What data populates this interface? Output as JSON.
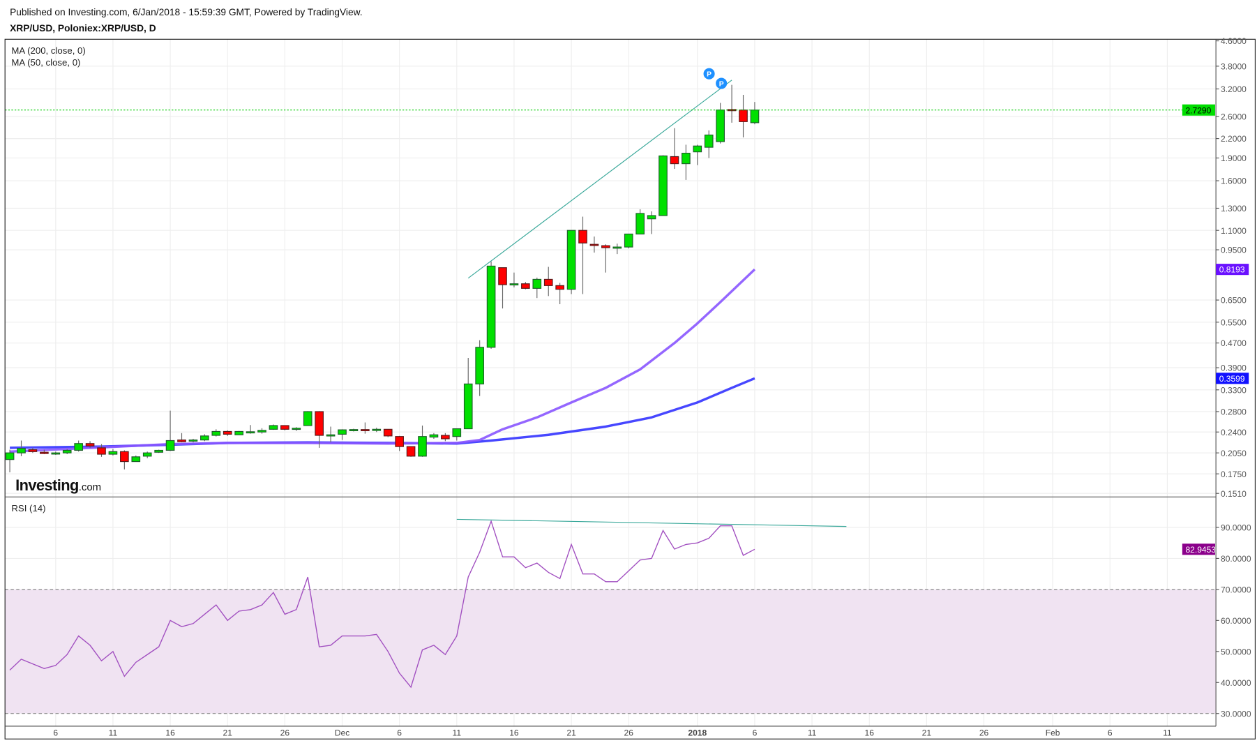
{
  "header": {
    "published": "Published on Investing.com, 6/Jan/2018 - 15:59:39 GMT, Powered by TradingView.",
    "symbol_title": "XRP/USD, Poloniex:XRP/USD, D"
  },
  "logo": {
    "text": "Investing",
    "suffix": ".com"
  },
  "chart_data": [
    {
      "type": "candlestick",
      "pane": "price",
      "scale": "log",
      "legend": [
        "MA (200, close, 0)",
        "MA (50, close, 0)"
      ],
      "yticks": [
        "4.6000",
        "3.8000",
        "3.2000",
        "2.6000",
        "2.2000",
        "1.9000",
        "1.6000",
        "1.3000",
        "1.1000",
        "0.9500",
        "0.6500",
        "0.5500",
        "0.4700",
        "0.3900",
        "0.3300",
        "0.2800",
        "0.2400",
        "0.2050",
        "0.1750",
        "0.1510"
      ],
      "ylim": [
        0.151,
        4.6
      ],
      "grid": true,
      "colors": {
        "up": "#00e000",
        "down": "#ff0000",
        "ma50": "#8855ff",
        "ma200": "#3333ff",
        "trendline": "#3aa89a",
        "last_price_line": "#00cc00"
      },
      "candles": [
        [
          "2017-11-02",
          0.195,
          0.21,
          0.177,
          0.205
        ],
        [
          "2017-11-03",
          0.205,
          0.225,
          0.2,
          0.212
        ],
        [
          "2017-11-04",
          0.21,
          0.213,
          0.205,
          0.207
        ],
        [
          "2017-11-05",
          0.206,
          0.21,
          0.203,
          0.204
        ],
        [
          "2017-11-06",
          0.204,
          0.207,
          0.202,
          0.205
        ],
        [
          "2017-11-07",
          0.205,
          0.211,
          0.203,
          0.209
        ],
        [
          "2017-11-08",
          0.209,
          0.225,
          0.207,
          0.22
        ],
        [
          "2017-11-09",
          0.22,
          0.224,
          0.213,
          0.216
        ],
        [
          "2017-11-10",
          0.213,
          0.219,
          0.199,
          0.203
        ],
        [
          "2017-11-11",
          0.203,
          0.211,
          0.201,
          0.207
        ],
        [
          "2017-11-12",
          0.207,
          0.209,
          0.181,
          0.192
        ],
        [
          "2017-11-13",
          0.192,
          0.201,
          0.192,
          0.199
        ],
        [
          "2017-11-14",
          0.2,
          0.207,
          0.197,
          0.205
        ],
        [
          "2017-11-15",
          0.206,
          0.21,
          0.205,
          0.209
        ],
        [
          "2017-11-16",
          0.209,
          0.282,
          0.208,
          0.225
        ],
        [
          "2017-11-17",
          0.226,
          0.238,
          0.222,
          0.223
        ],
        [
          "2017-11-18",
          0.224,
          0.228,
          0.222,
          0.226
        ],
        [
          "2017-11-19",
          0.226,
          0.236,
          0.224,
          0.233
        ],
        [
          "2017-11-20",
          0.234,
          0.245,
          0.232,
          0.241
        ],
        [
          "2017-11-21",
          0.241,
          0.243,
          0.233,
          0.236
        ],
        [
          "2017-11-22",
          0.235,
          0.242,
          0.235,
          0.241
        ],
        [
          "2017-11-23",
          0.24,
          0.253,
          0.237,
          0.2405
        ],
        [
          "2017-11-24",
          0.24,
          0.247,
          0.237,
          0.243
        ],
        [
          "2017-11-25",
          0.245,
          0.254,
          0.244,
          0.252
        ],
        [
          "2017-11-26",
          0.252,
          0.252,
          0.243,
          0.245
        ],
        [
          "2017-11-27",
          0.245,
          0.249,
          0.242,
          0.247
        ],
        [
          "2017-11-28",
          0.252,
          0.281,
          0.252,
          0.28
        ],
        [
          "2017-11-29",
          0.28,
          0.281,
          0.213,
          0.234
        ],
        [
          "2017-11-30",
          0.234,
          0.25,
          0.222,
          0.235
        ],
        [
          "2017-12-01",
          0.236,
          0.245,
          0.226,
          0.244
        ],
        [
          "2017-12-02",
          0.244,
          0.246,
          0.241,
          0.2445
        ],
        [
          "2017-12-03",
          0.2445,
          0.258,
          0.237,
          0.244
        ],
        [
          "2017-12-04",
          0.244,
          0.248,
          0.24,
          0.245
        ],
        [
          "2017-12-05",
          0.245,
          0.245,
          0.231,
          0.233
        ],
        [
          "2017-12-06",
          0.232,
          0.233,
          0.208,
          0.215
        ],
        [
          "2017-12-07",
          0.215,
          0.215,
          0.199,
          0.2
        ],
        [
          "2017-12-08",
          0.2,
          0.252,
          0.199,
          0.232
        ],
        [
          "2017-12-09",
          0.231,
          0.238,
          0.228,
          0.235
        ],
        [
          "2017-12-10",
          0.234,
          0.238,
          0.224,
          0.228
        ],
        [
          "2017-12-11",
          0.232,
          0.245,
          0.225,
          0.246
        ],
        [
          "2017-12-12",
          0.246,
          0.42,
          0.246,
          0.345
        ],
        [
          "2017-12-13",
          0.345,
          0.48,
          0.315,
          0.455
        ],
        [
          "2017-12-14",
          0.455,
          0.87,
          0.45,
          0.84
        ],
        [
          "2017-12-15",
          0.83,
          0.83,
          0.61,
          0.73
        ],
        [
          "2017-12-16",
          0.73,
          0.8,
          0.715,
          0.735
        ],
        [
          "2017-12-17",
          0.735,
          0.745,
          0.705,
          0.71
        ],
        [
          "2017-12-18",
          0.71,
          0.77,
          0.66,
          0.76
        ],
        [
          "2017-12-19",
          0.76,
          0.835,
          0.67,
          0.725
        ],
        [
          "2017-12-20",
          0.725,
          0.74,
          0.63,
          0.705
        ],
        [
          "2017-12-21",
          0.705,
          1.1,
          0.68,
          1.1
        ],
        [
          "2017-12-22",
          1.1,
          1.22,
          0.68,
          1.0
        ],
        [
          "2017-12-23",
          0.99,
          1.05,
          0.93,
          0.985
        ],
        [
          "2017-12-24",
          0.98,
          0.99,
          0.8,
          0.965
        ],
        [
          "2017-12-25",
          0.965,
          0.995,
          0.92,
          0.97
        ],
        [
          "2017-12-26",
          0.97,
          1.06,
          0.96,
          1.07
        ],
        [
          "2017-12-27",
          1.07,
          1.29,
          1.07,
          1.25
        ],
        [
          "2017-12-28",
          1.2,
          1.27,
          1.07,
          1.23
        ],
        [
          "2017-12-29",
          1.23,
          1.94,
          1.23,
          1.93
        ],
        [
          "2017-12-30",
          1.92,
          2.38,
          1.75,
          1.82
        ],
        [
          "2017-12-31",
          1.82,
          2.1,
          1.61,
          1.97
        ],
        [
          "2018-01-01",
          1.99,
          2.1,
          1.8,
          2.08
        ],
        [
          "2018-01-02",
          2.06,
          2.34,
          1.9,
          2.26
        ],
        [
          "2018-01-03",
          2.15,
          2.88,
          2.12,
          2.73
        ],
        [
          "2018-01-04",
          2.74,
          3.3,
          2.48,
          2.73
        ],
        [
          "2018-01-05",
          2.73,
          3.06,
          2.22,
          2.5
        ],
        [
          "2018-01-06",
          2.48,
          2.9,
          2.45,
          2.729
        ]
      ],
      "ma200": [
        [
          "2017-11-02",
          0.213
        ],
        [
          "2017-11-10",
          0.215
        ],
        [
          "2017-11-16",
          0.218
        ],
        [
          "2017-11-21",
          0.221
        ],
        [
          "2017-11-28",
          0.222
        ],
        [
          "2017-12-05",
          0.221
        ],
        [
          "2017-12-11",
          0.22
        ],
        [
          "2017-12-14",
          0.225
        ],
        [
          "2017-12-19",
          0.235
        ],
        [
          "2017-12-24",
          0.25
        ],
        [
          "2017-12-28",
          0.268
        ],
        [
          "2018-01-01",
          0.3
        ],
        [
          "2018-01-04",
          0.335
        ],
        [
          "2018-01-06",
          0.3599
        ]
      ],
      "ma50": [
        [
          "2017-11-02",
          0.207
        ],
        [
          "2017-11-08",
          0.212
        ],
        [
          "2017-11-16",
          0.219
        ],
        [
          "2017-11-21",
          0.221
        ],
        [
          "2017-11-28",
          0.221
        ],
        [
          "2017-12-05",
          0.22
        ],
        [
          "2017-12-11",
          0.221
        ],
        [
          "2017-12-13",
          0.226
        ],
        [
          "2017-12-15",
          0.245
        ],
        [
          "2017-12-18",
          0.268
        ],
        [
          "2017-12-21",
          0.3
        ],
        [
          "2017-12-24",
          0.335
        ],
        [
          "2017-12-27",
          0.385
        ],
        [
          "2017-12-30",
          0.47
        ],
        [
          "2018-01-01",
          0.545
        ],
        [
          "2018-01-03",
          0.64
        ],
        [
          "2018-01-06",
          0.8193
        ]
      ],
      "trendline": [
        [
          "2017-12-12",
          0.767
        ],
        [
          "2018-01-04",
          3.42
        ]
      ],
      "markers": [
        {
          "date": "2018-01-03",
          "label": "P"
        },
        {
          "date": "2018-01-04",
          "label": "P"
        }
      ],
      "badges": [
        {
          "value": "2.7290",
          "price": 2.729,
          "bg": "#00dd00",
          "fg": "#000000"
        },
        {
          "value": "0.8193",
          "price": 0.8193,
          "bg": "#6a11ff",
          "fg": "#ffffff"
        },
        {
          "value": "0.3599",
          "price": 0.3599,
          "bg": "#1111ff",
          "fg": "#ffffff"
        }
      ]
    },
    {
      "type": "line",
      "pane": "rsi",
      "legend": "RSI (14)",
      "yticks": [
        "90.0000",
        "80.0000",
        "70.0000",
        "60.0000",
        "50.0000",
        "40.0000",
        "30.0000"
      ],
      "band": [
        30,
        70
      ],
      "color": "#a14fc0",
      "band_color": "#f0e3f2",
      "start": "2017-11-02",
      "values": [
        44,
        47.5,
        46,
        44.5,
        45.5,
        49,
        55,
        52,
        47,
        50,
        42,
        46.5,
        49,
        51.5,
        60,
        58,
        59,
        62,
        65,
        60,
        63,
        63.5,
        65,
        69,
        62,
        63.5,
        74,
        51.5,
        52,
        55,
        55,
        55,
        55.5,
        50,
        43,
        38.5,
        50.5,
        52,
        49,
        55,
        74,
        82,
        92,
        80.5,
        80.5,
        77,
        78.5,
        75.5,
        73.5,
        84.5,
        75,
        75,
        72.5,
        72.5,
        76,
        79.5,
        80,
        89,
        83,
        84.5,
        85,
        86.5,
        90.5,
        90.5,
        81,
        82.9453
      ],
      "trendline": [
        [
          "2017-12-11",
          92.6
        ],
        [
          "2018-01-14",
          90.3
        ]
      ],
      "badge": {
        "value": "82.9453",
        "bg": "#8b008b",
        "fg": "#ffffff"
      }
    }
  ],
  "xaxis": {
    "labels": [
      {
        "text": "6",
        "date": "2017-11-06"
      },
      {
        "text": "11",
        "date": "2017-11-11"
      },
      {
        "text": "16",
        "date": "2017-11-16"
      },
      {
        "text": "21",
        "date": "2017-11-21"
      },
      {
        "text": "26",
        "date": "2017-11-26"
      },
      {
        "text": "Dec",
        "date": "2017-12-01"
      },
      {
        "text": "6",
        "date": "2017-12-06"
      },
      {
        "text": "11",
        "date": "2017-12-11"
      },
      {
        "text": "16",
        "date": "2017-12-16"
      },
      {
        "text": "21",
        "date": "2017-12-21"
      },
      {
        "text": "26",
        "date": "2017-12-26"
      },
      {
        "text": "2018",
        "date": "2018-01-01",
        "bold": true
      },
      {
        "text": "6",
        "date": "2018-01-06"
      },
      {
        "text": "11",
        "date": "2018-01-11"
      },
      {
        "text": "16",
        "date": "2018-01-16"
      },
      {
        "text": "21",
        "date": "2018-01-21"
      },
      {
        "text": "26",
        "date": "2018-01-26"
      },
      {
        "text": "Feb",
        "date": "2018-02-01"
      },
      {
        "text": "6",
        "date": "2018-02-06"
      },
      {
        "text": "11",
        "date": "2018-02-11"
      }
    ]
  }
}
